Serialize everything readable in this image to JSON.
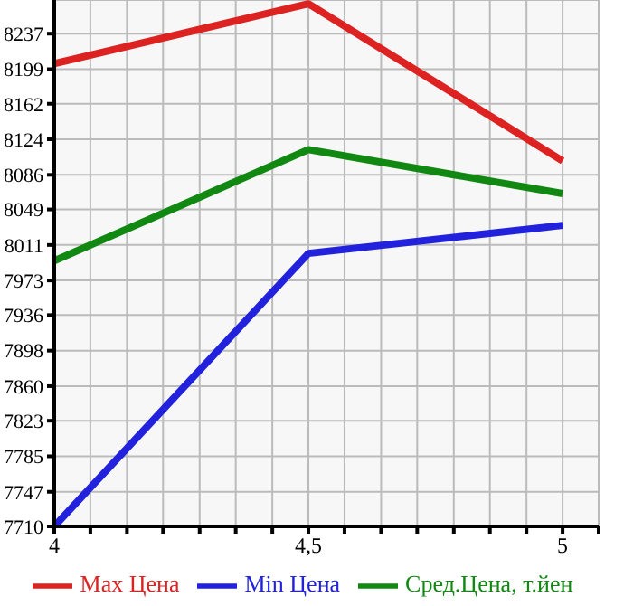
{
  "chart_data": {
    "type": "line",
    "x": [
      4,
      4.5,
      5
    ],
    "series": [
      {
        "name": "Max Цена",
        "color": "#dd2222",
        "values": [
          8205,
          8269,
          8101
        ]
      },
      {
        "name": "Min Цена",
        "color": "#2222dd",
        "values": [
          7710,
          8002,
          8032
        ]
      },
      {
        "name": "Сред.Цена, т.йен",
        "color": "#118811",
        "values": [
          7994,
          8113,
          8066
        ]
      }
    ],
    "xlim": [
      4,
      5.071
    ],
    "xticks": [
      4,
      {
        "value": 4.071,
        "label": null
      },
      {
        "value": 4.143,
        "label": null
      },
      {
        "value": 4.214,
        "label": null
      },
      {
        "value": 4.286,
        "label": null
      },
      {
        "value": 4.357,
        "label": null
      },
      {
        "value": 4.429,
        "label": null
      },
      {
        "value": 4.5,
        "label": "4,5"
      },
      {
        "value": 4.571,
        "label": null
      },
      {
        "value": 4.643,
        "label": null
      },
      {
        "value": 4.714,
        "label": null
      },
      {
        "value": 4.786,
        "label": null
      },
      {
        "value": 4.857,
        "label": null
      },
      {
        "value": 4.929,
        "label": null
      },
      5,
      {
        "value": 5.071,
        "label": null
      }
    ],
    "ylim": [
      7710,
      8273
    ],
    "yticks": [
      7710,
      7747,
      7785,
      7823,
      7860,
      7898,
      7936,
      7973,
      8011,
      8049,
      8086,
      8124,
      8162,
      8199,
      8237
    ],
    "grid": true,
    "legend": "bottom",
    "marker": "none",
    "line_style": "solid"
  }
}
